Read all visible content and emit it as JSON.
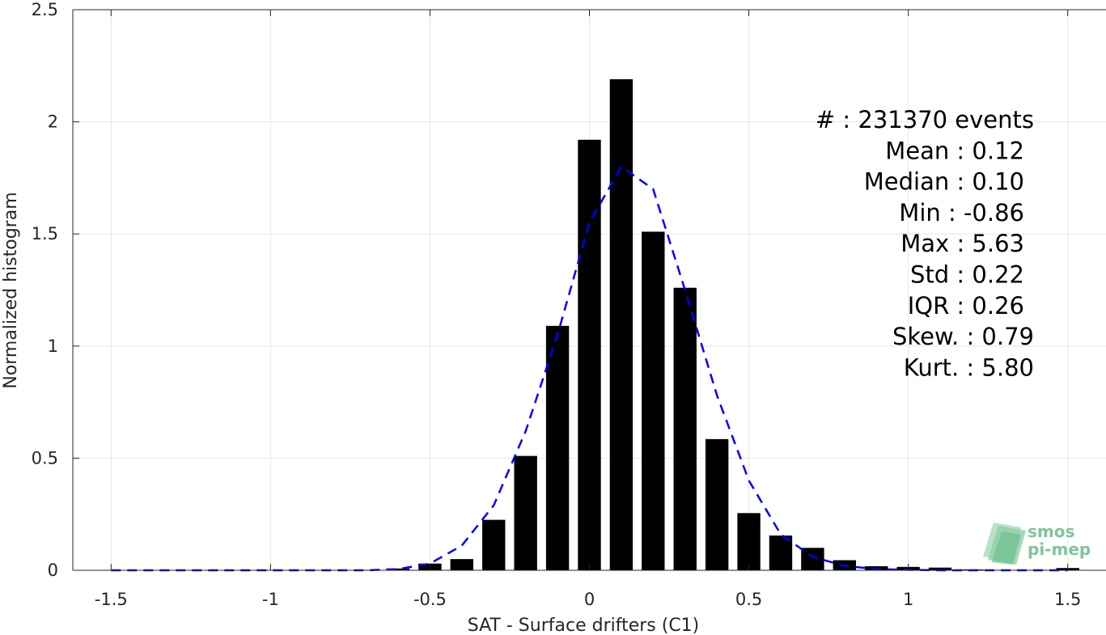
{
  "chart_data": {
    "type": "bar",
    "xlabel": "SAT - Surface drifters (C1)",
    "ylabel": "Normalized histogram",
    "xlim": [
      -1.62,
      1.62
    ],
    "ylim": [
      0,
      2.5
    ],
    "xticks": [
      -1.5,
      -1,
      -0.5,
      0,
      0.5,
      1,
      1.5
    ],
    "xtick_labels": [
      "-1.5",
      "-1",
      "-0.5",
      "0",
      "0.5",
      "1",
      "1.5"
    ],
    "yticks": [
      0,
      0.5,
      1,
      1.5,
      2,
      2.5
    ],
    "ytick_labels": [
      "0",
      "0.5",
      "1",
      "1.5",
      "2",
      "2.5"
    ],
    "grid": true,
    "bar_color": "#000000",
    "bars": {
      "x": [
        -1.5,
        -1.4,
        -1.3,
        -1.2,
        -1.1,
        -1.0,
        -0.9,
        -0.8,
        -0.7,
        -0.6,
        -0.5,
        -0.4,
        -0.3,
        -0.2,
        -0.1,
        0.0,
        0.1,
        0.2,
        0.3,
        0.4,
        0.5,
        0.6,
        0.7,
        0.8,
        0.9,
        1.0,
        1.1,
        1.2,
        1.3,
        1.4,
        1.5
      ],
      "values": [
        0,
        0,
        0,
        0,
        0,
        0,
        0,
        0,
        0.002,
        0.008,
        0.03,
        0.05,
        0.225,
        0.51,
        1.09,
        1.92,
        2.19,
        1.51,
        1.26,
        0.585,
        0.255,
        0.155,
        0.1,
        0.045,
        0.018,
        0.015,
        0.012,
        0.004,
        0.002,
        0.002,
        0.01
      ]
    },
    "fit": {
      "color": "#0000ff",
      "style": "dashed",
      "x": [
        -1.5,
        -1.4,
        -1.3,
        -1.2,
        -1.1,
        -1.0,
        -0.9,
        -0.8,
        -0.7,
        -0.6,
        -0.5,
        -0.4,
        -0.3,
        -0.2,
        -0.1,
        0.0,
        0.1,
        0.2,
        0.3,
        0.4,
        0.5,
        0.6,
        0.7,
        0.8,
        0.9,
        1.0,
        1.1,
        1.2,
        1.3,
        1.4,
        1.5
      ],
      "values": [
        0,
        0,
        0,
        0,
        0,
        0,
        0,
        0,
        0,
        0.005,
        0.03,
        0.11,
        0.29,
        0.62,
        1.05,
        1.55,
        1.8,
        1.7,
        1.25,
        0.78,
        0.4,
        0.16,
        0.06,
        0.02,
        0.005,
        0.002,
        0,
        0,
        0,
        0,
        0
      ]
    },
    "annotations": [
      "#  : 231370 events",
      "Mean : 0.12",
      "Median : 0.10",
      "Min : -0.86",
      "Max : 5.63",
      "Std : 0.22",
      "IQR : 0.26",
      "Skew. : 0.79",
      "Kurt. : 5.80"
    ]
  },
  "logo": {
    "line1": "smos",
    "line2": "pi-mep"
  }
}
